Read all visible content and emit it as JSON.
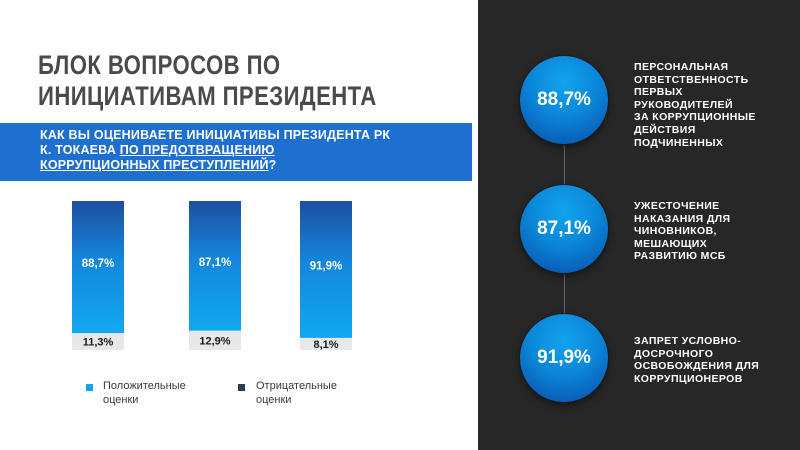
{
  "title_lines": [
    "БЛОК ВОПРОСОВ ПО",
    "ИНИЦИАТИВАМ ПРЕЗИДЕНТА"
  ],
  "question": {
    "line1": "КАК ВЫ ОЦЕНИВАЕТЕ ИНИЦИАТИВЫ ПРЕЗИДЕНТА РК",
    "line2_plain": "К. ТОКАЕВА ",
    "line2_underlined": "ПО ПРЕДОТВРАЩЕНИЮ",
    "line3_underlined": "КОРРУПЦИОННЫХ ПРЕСТУПЛЕНИЙ",
    "line3_tail": "?"
  },
  "chart_data": {
    "type": "bar",
    "stacked": true,
    "categories": [
      "",
      "",
      ""
    ],
    "series": [
      {
        "name": "Положительные оценки",
        "values": [
          88.7,
          87.1,
          91.9
        ],
        "labels": [
          "88,7%",
          "87,1%",
          "91,9%"
        ],
        "color": "#12a4ee",
        "color_top": "#1f5fb8"
      },
      {
        "name": "Отрицательные оценки",
        "values": [
          11.3,
          12.9,
          8.1
        ],
        "labels": [
          "11,3%",
          "12,9%",
          "8,1%"
        ],
        "color": "#e8e8e8"
      }
    ],
    "ylim": [
      0,
      100
    ],
    "grid": false,
    "legend_position": "bottom"
  },
  "legend": [
    {
      "line1": "Положительные",
      "line2": "оценки",
      "color": "#12a4ee"
    },
    {
      "line1": "Отрицательные",
      "line2": "оценки",
      "color": "#2c3e50"
    }
  ],
  "right_items": [
    {
      "value": "88,7%",
      "lines": [
        "ПЕРСОНАЛЬНАЯ",
        "ОТВЕТСТВЕННОСТЬ",
        "ПЕРВЫХ",
        "РУКОВОДИТЕЛЕЙ",
        "ЗА КОРРУПЦИОННЫЕ",
        "ДЕЙСТВИЯ",
        "ПОДЧИНЕННЫХ"
      ]
    },
    {
      "value": "87,1%",
      "lines": [
        "УЖЕСТОЧЕНИЕ",
        "НАКАЗАНИЯ ДЛЯ",
        "ЧИНОВНИКОВ,",
        "МЕШАЮЩИХ",
        "РАЗВИТИЮ МСБ"
      ]
    },
    {
      "value": "91,9%",
      "lines": [
        "ЗАПРЕТ УСЛОВНО-",
        "ДОСРОЧНОГО",
        "ОСВОБОЖДЕНИЯ ДЛЯ",
        "КОРРУПЦИОНЕРОВ"
      ]
    }
  ],
  "colors": {
    "accent_blue": "#1f6fd1",
    "dark_panel": "#272727",
    "bar_blue": "#12a4ee",
    "negative_bg": "#e8e8e8",
    "text_dark": "#4a4a4a"
  }
}
